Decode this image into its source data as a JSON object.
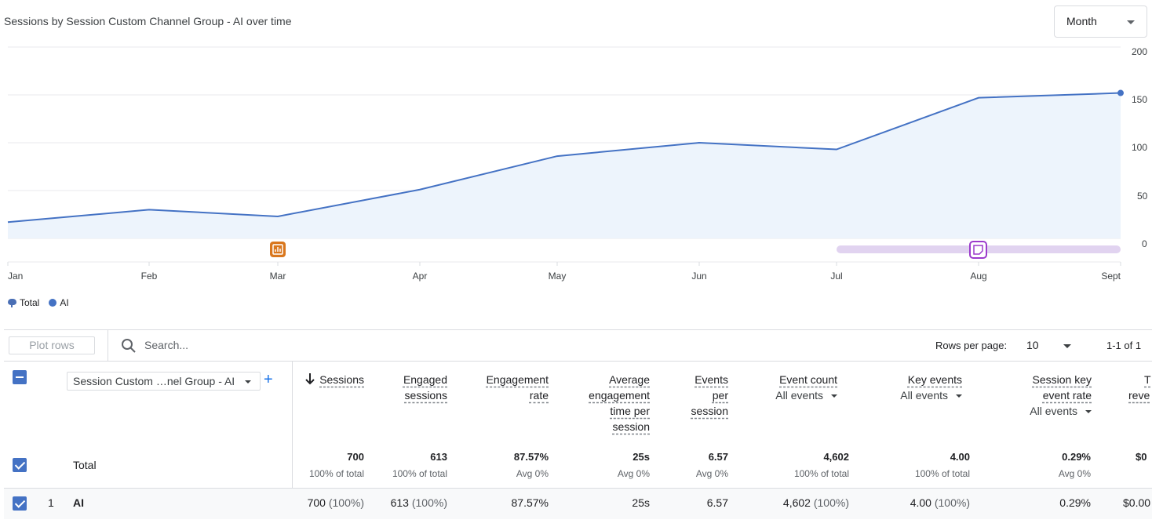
{
  "chart": {
    "title": "Sessions by Session Custom Channel Group - AI over time",
    "period_selector": "Month"
  },
  "chart_data": {
    "type": "area",
    "title": "Sessions by Session Custom Channel Group - AI over time",
    "categories": [
      "Jan",
      "Feb",
      "Mar",
      "Apr",
      "May",
      "Jun",
      "Jul",
      "Aug",
      "Sept"
    ],
    "series": [
      {
        "name": "Total",
        "values": [
          17,
          30,
          23,
          51,
          86,
          100,
          93,
          147,
          152
        ]
      },
      {
        "name": "AI",
        "values": [
          17,
          30,
          23,
          51,
          86,
          100,
          93,
          147,
          152
        ]
      }
    ],
    "y_ticks": [
      "200",
      "150",
      "100",
      "50",
      "0"
    ],
    "ylim": [
      0,
      200
    ],
    "grid": true,
    "legend_position": "bottom-left",
    "colors": {
      "line": "#4472c4",
      "fill": "#edf4fc",
      "marker_orange": "#d9771e",
      "marker_purple": "#9c3bcc",
      "range_bar": "#e1d3f0"
    }
  },
  "legend": [
    {
      "label": "Total",
      "icon": "pin-icon"
    },
    {
      "label": "AI",
      "icon": "dot-icon"
    }
  ],
  "toolbar": {
    "plot_rows": "Plot rows",
    "search_placeholder": "Search...",
    "rows_per_page_label": "Rows per page:",
    "rows_per_page_value": "10",
    "page_range": "1-1 of 1"
  },
  "table": {
    "dimension": "Session Custom …nel Group - AI",
    "columns": [
      {
        "lines": [
          "Sessions"
        ],
        "selector": ""
      },
      {
        "lines": [
          "Engaged",
          "sessions"
        ],
        "selector": ""
      },
      {
        "lines": [
          "Engagement",
          "rate"
        ],
        "selector": ""
      },
      {
        "lines": [
          "Average",
          "engagement",
          "time per",
          "session"
        ],
        "selector": ""
      },
      {
        "lines": [
          "Events",
          "per",
          "session"
        ],
        "selector": ""
      },
      {
        "lines": [
          "Event count"
        ],
        "selector": "All events"
      },
      {
        "lines": [
          "Key events"
        ],
        "selector": "All events"
      },
      {
        "lines": [
          "Session key",
          "event rate"
        ],
        "selector": "All events"
      },
      {
        "lines": [
          "T",
          "reve"
        ],
        "selector": ""
      }
    ],
    "total": {
      "label": "Total",
      "values": [
        "700",
        "613",
        "87.57%",
        "25s",
        "6.57",
        "4,602",
        "4.00",
        "0.29%",
        "$0"
      ],
      "subs": [
        "100% of total",
        "100% of total",
        "Avg 0%",
        "Avg 0%",
        "Avg 0%",
        "100% of total",
        "100% of total",
        "Avg 0%",
        ""
      ]
    },
    "rows": [
      {
        "index": "1",
        "label": "AI",
        "values": [
          "700",
          "613",
          "87.57%",
          "25s",
          "6.57",
          "4,602",
          "4.00",
          "0.29%",
          "$0.00"
        ],
        "pcts": [
          "(100%)",
          "(100%)",
          "",
          "",
          "",
          "(100%)",
          "(100%)",
          "",
          ""
        ]
      }
    ]
  }
}
